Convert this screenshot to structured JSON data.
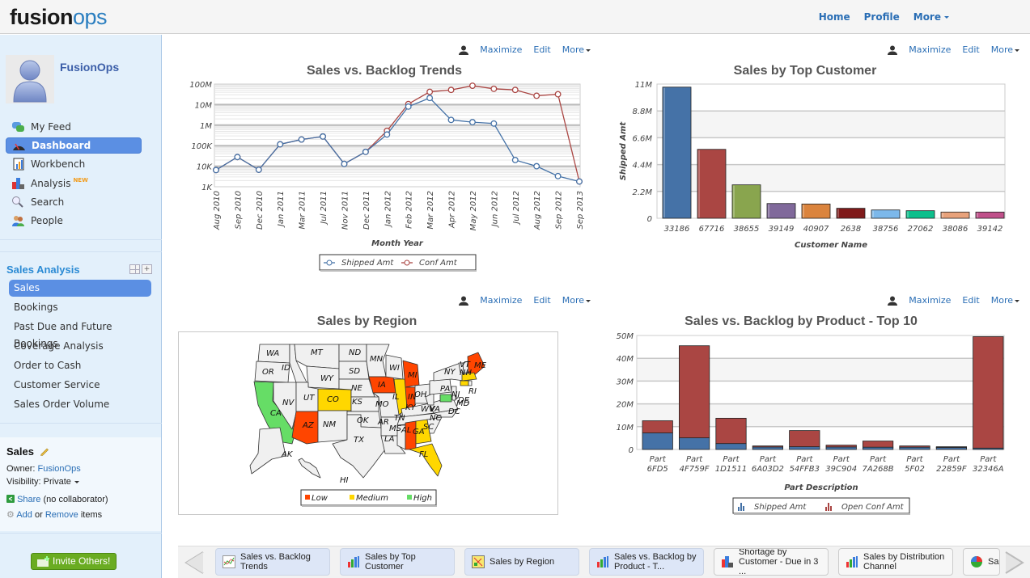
{
  "header": {
    "logo_part1": "fusion",
    "logo_part2": "ops",
    "nav": [
      {
        "label": "Home"
      },
      {
        "label": "Profile"
      },
      {
        "label": "More"
      }
    ]
  },
  "sidebar": {
    "username": "FusionOps",
    "nav": [
      {
        "label": "My Feed",
        "icon": "feed-icon"
      },
      {
        "label": "Dashboard",
        "icon": "dashboard-icon",
        "active": true
      },
      {
        "label": "Workbench",
        "icon": "workbench-icon"
      },
      {
        "label": "Analysis",
        "icon": "analysis-icon",
        "badge": "NEW"
      },
      {
        "label": "Search",
        "icon": "search-icon"
      },
      {
        "label": "People",
        "icon": "people-icon"
      }
    ],
    "section_title": "Sales Analysis",
    "section_items": [
      {
        "label": "Sales",
        "active": true
      },
      {
        "label": "Bookings"
      },
      {
        "label": "Past Due and Future Bookings"
      },
      {
        "label": "Coverage Analysis"
      },
      {
        "label": "Order to Cash"
      },
      {
        "label": "Customer Service"
      },
      {
        "label": "Sales Order Volume"
      }
    ],
    "info": {
      "title": "Sales",
      "owner_label": "Owner:",
      "owner": "FusionOps",
      "visibility_label": "Visibility:",
      "visibility": "Private",
      "share": "Share",
      "share_note": "(no collaborator)",
      "add": "Add",
      "or": "or",
      "remove": "Remove",
      "items": "items"
    },
    "invite_label": "Invite Others!"
  },
  "panel_tools": {
    "maximize": "Maximize",
    "edit": "Edit",
    "more": "More"
  },
  "colors": {
    "shipped": "#4572a7",
    "conf": "#aa4643",
    "low": "#ff4500",
    "medium": "#ffd700",
    "high": "#66dd66"
  },
  "chart_data": [
    {
      "type": "line",
      "title": "Sales vs. Backlog Trends",
      "xlabel": "Month Year",
      "ylabel": "",
      "yscale": "log",
      "ylim": [
        1000,
        100000000
      ],
      "yticks": [
        "1K",
        "10K",
        "100K",
        "1M",
        "10M",
        "100M"
      ],
      "ytick_values": [
        1000,
        10000,
        100000,
        1000000,
        10000000,
        100000000
      ],
      "categories": [
        "Aug 2010",
        "Sep 2010",
        "Dec 2010",
        "Jan 2011",
        "Mar 2011",
        "Jul 2011",
        "Nov 2011",
        "Dec 2011",
        "Jan 2012",
        "Feb 2012",
        "Mar 2012",
        "Apr 2012",
        "May 2012",
        "Jun 2012",
        "Jul 2012",
        "Aug 2012",
        "Sep 2012",
        "Sep 2013"
      ],
      "series": [
        {
          "name": "Shipped Amt",
          "values": [
            6500,
            28000,
            6700,
            117000,
            200000,
            280000,
            13000,
            50000,
            350000,
            8000000,
            21000000,
            1800000,
            1400000,
            1200000,
            20000,
            10000,
            3300,
            1800
          ]
        },
        {
          "name": "Conf Amt",
          "values": [
            6500,
            28000,
            6700,
            117000,
            200000,
            280000,
            13000,
            50000,
            530000,
            10700000,
            42000000,
            52000000,
            83000000,
            59000000,
            52000000,
            27000000,
            32000000,
            1800
          ]
        }
      ],
      "legend": "bottom"
    },
    {
      "type": "bar",
      "title": "Sales by Top Customer",
      "xlabel": "Customer Name",
      "ylabel": "Shipped Amt",
      "ylim": [
        0,
        11000000
      ],
      "yticks": [
        "0",
        "2.2M",
        "4.4M",
        "6.6M",
        "8.8M",
        "11M"
      ],
      "categories": [
        "33186",
        "67716",
        "38655",
        "39149",
        "40907",
        "2638",
        "38756",
        "27062",
        "38086",
        "39142"
      ],
      "values": [
        10750000,
        5650000,
        2740000,
        1210000,
        1170000,
        820000,
        680000,
        620000,
        510000,
        510000
      ],
      "bar_colors": [
        "#4572a7",
        "#aa4643",
        "#89a54e",
        "#80699b",
        "#db843d",
        "#7f1a1a",
        "#7cb8ea",
        "#0dbf8c",
        "#e8a27b",
        "#c0508a"
      ]
    },
    {
      "type": "map",
      "title": "Sales by Region",
      "legend": [
        {
          "label": "Low",
          "color": "#ff4500"
        },
        {
          "label": "Medium",
          "color": "#ffd700"
        },
        {
          "label": "High",
          "color": "#66dd66"
        }
      ],
      "states": {
        "WA": "none",
        "OR": "none",
        "CA": "High",
        "NV": "none",
        "ID": "none",
        "MT": "none",
        "WY": "none",
        "UT": "none",
        "AZ": "Low",
        "CO": "Medium",
        "NM": "none",
        "ND": "none",
        "SD": "none",
        "NE": "none",
        "KS": "none",
        "OK": "none",
        "TX": "none",
        "MN": "none",
        "IA": "Low",
        "MO": "none",
        "AR": "none",
        "LA": "none",
        "WI": "none",
        "IL": "Medium",
        "MI": "Low",
        "IN": "Low",
        "OH": "none",
        "KY": "none",
        "TN": "none",
        "MS": "none",
        "AL": "Low",
        "GA": "Medium",
        "FL": "Medium",
        "SC": "none",
        "NC": "none",
        "VA": "none",
        "WV": "none",
        "PA": "none",
        "NY": "none",
        "VT": "none",
        "NH": "none",
        "ME": "Low",
        "MA": "Medium",
        "RI": "none",
        "CT": "Medium",
        "NJ": "none",
        "DE": "none",
        "MD": "High",
        "DC": "none",
        "AK": "none",
        "HI": "none"
      }
    },
    {
      "type": "bar",
      "stacked": true,
      "title": "Sales vs. Backlog by Product - Top 10",
      "xlabel": "Part Description",
      "ylabel": "",
      "ylim": [
        0,
        50000000
      ],
      "yticks": [
        "0",
        "10M",
        "20M",
        "30M",
        "40M",
        "50M"
      ],
      "categories": [
        "Part 6FD5",
        "Part 4F759F",
        "Part 1D1511",
        "Part 6A03D2",
        "Part 54FFB3",
        "Part 39C904",
        "Part 7A268B",
        "Part 5F02",
        "Part 22859F",
        "Part 32346A"
      ],
      "series": [
        {
          "name": "Shipped Amt",
          "values": [
            7250000,
            5100000,
            2600000,
            1100000,
            1200000,
            1100000,
            1000000,
            1000000,
            900000,
            600000
          ]
        },
        {
          "name": "Open Conf Amt",
          "values": [
            5350000,
            40400000,
            11100000,
            450000,
            7100000,
            800000,
            2700000,
            550000,
            300000,
            48900000
          ]
        }
      ],
      "legend": "bottom"
    }
  ],
  "bottom_tabs": [
    {
      "label": "Sales vs. Backlog Trends",
      "icon": "line-chart-icon",
      "active": true
    },
    {
      "label": "Sales by Top Customer",
      "icon": "bar-chart-icon",
      "active": true
    },
    {
      "label": "Sales by Region",
      "icon": "map-icon",
      "active": true
    },
    {
      "label": "Sales vs. Backlog by Product - T...",
      "icon": "bar-chart-icon",
      "active": true
    },
    {
      "label": "Shortage by Customer - Due in 3 ...",
      "icon": "analysis-icon",
      "active": false
    },
    {
      "label": "Sales by Distribution Channel",
      "icon": "bar-chart-icon",
      "active": false
    },
    {
      "label": "Sale",
      "icon": "pie-chart-icon",
      "active": false
    }
  ]
}
